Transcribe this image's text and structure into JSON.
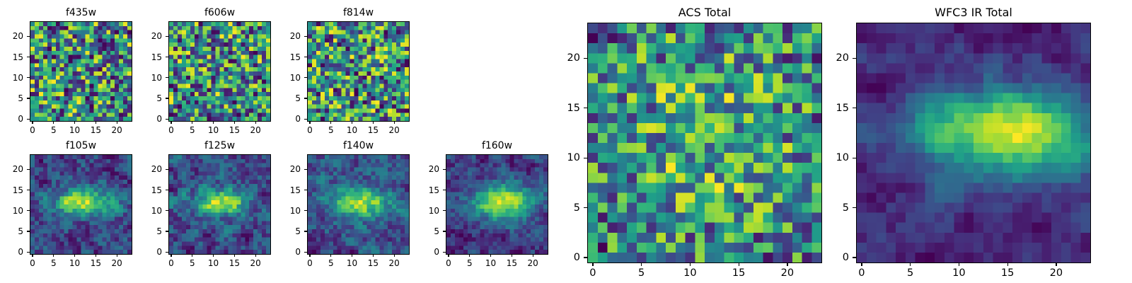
{
  "figure": {
    "background": "#ffffff",
    "border_color": "#000000"
  },
  "chart_data": {
    "type": "heatmap",
    "colormap": "viridis",
    "colormap_anchors": [
      "#440154",
      "#482878",
      "#3e4989",
      "#31688e",
      "#26828e",
      "#1f9e89",
      "#35b779",
      "#6ece58",
      "#b5de2b",
      "#fde725"
    ],
    "grid_size": 24,
    "xticks": [
      0,
      5,
      10,
      15,
      20
    ],
    "yticks": [
      0,
      5,
      10,
      15,
      20
    ],
    "axis_range": [
      -0.5,
      23.5
    ],
    "panels": [
      {
        "id": "f435w",
        "title": "f435w",
        "seed": 11,
        "smooth": 0,
        "blob": null
      },
      {
        "id": "f606w",
        "title": "f606w",
        "seed": 22,
        "smooth": 0,
        "blob": null
      },
      {
        "id": "f814w",
        "title": "f814w",
        "seed": 33,
        "smooth": 0,
        "blob": null
      },
      {
        "id": "f105w",
        "title": "f105w",
        "seed": 44,
        "smooth": 1,
        "blob": {
          "x": 12,
          "y": 12,
          "sx": 5.0,
          "sy": 2.2,
          "amp": 1.1
        }
      },
      {
        "id": "f125w",
        "title": "f125w",
        "seed": 55,
        "smooth": 1,
        "blob": {
          "x": 12,
          "y": 12,
          "sx": 4.5,
          "sy": 2.2,
          "amp": 1.0
        }
      },
      {
        "id": "f140w",
        "title": "f140w",
        "seed": 66,
        "smooth": 1,
        "blob": {
          "x": 12,
          "y": 12,
          "sx": 5.0,
          "sy": 2.5,
          "amp": 1.1
        }
      },
      {
        "id": "f160w",
        "title": "f160w",
        "seed": 77,
        "smooth": 1,
        "blob": {
          "x": 13,
          "y": 12,
          "sx": 5.0,
          "sy": 3.0,
          "amp": 1.4
        }
      },
      {
        "id": "acs_total",
        "title": "ACS Total",
        "seed": 88,
        "smooth": 0,
        "blob": {
          "x": 12,
          "y": 12,
          "sx": 9.0,
          "sy": 9.0,
          "amp": 0.35
        }
      },
      {
        "id": "wfc3_ir_total",
        "title": "WFC3 IR Total",
        "seed": 99,
        "smooth": 2,
        "blob": {
          "x": 15,
          "y": 12.5,
          "sx": 6.5,
          "sy": 3.0,
          "amp": 1.5
        }
      }
    ]
  }
}
